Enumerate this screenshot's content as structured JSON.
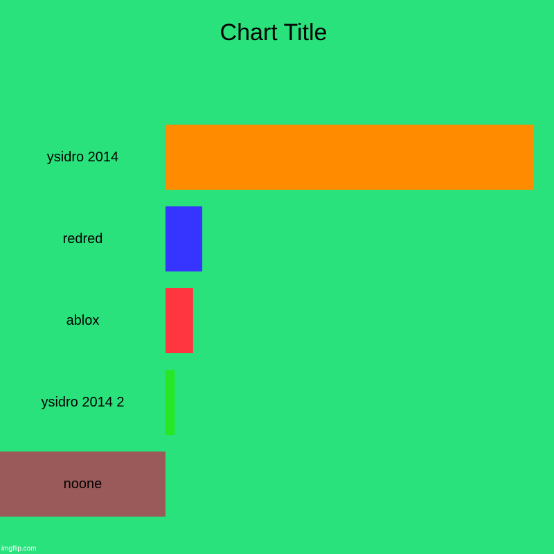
{
  "chart_data": {
    "type": "bar",
    "orientation": "horizontal",
    "title": "Chart Title",
    "categories": [
      "ysidro 2014",
      "redred",
      "ablox",
      "ysidro 2014 2",
      "noone"
    ],
    "values": [
      100,
      10,
      7.5,
      2.5,
      -45
    ],
    "colors": [
      "#ff8c00",
      "#3535ff",
      "#ff3540",
      "#26e626",
      "#9b5a5a"
    ],
    "xlim": [
      -45,
      100
    ],
    "xlabel": "",
    "ylabel": "",
    "grid": false,
    "legend": "none",
    "background": "#2ae27c"
  },
  "watermark": "imgflip.com"
}
